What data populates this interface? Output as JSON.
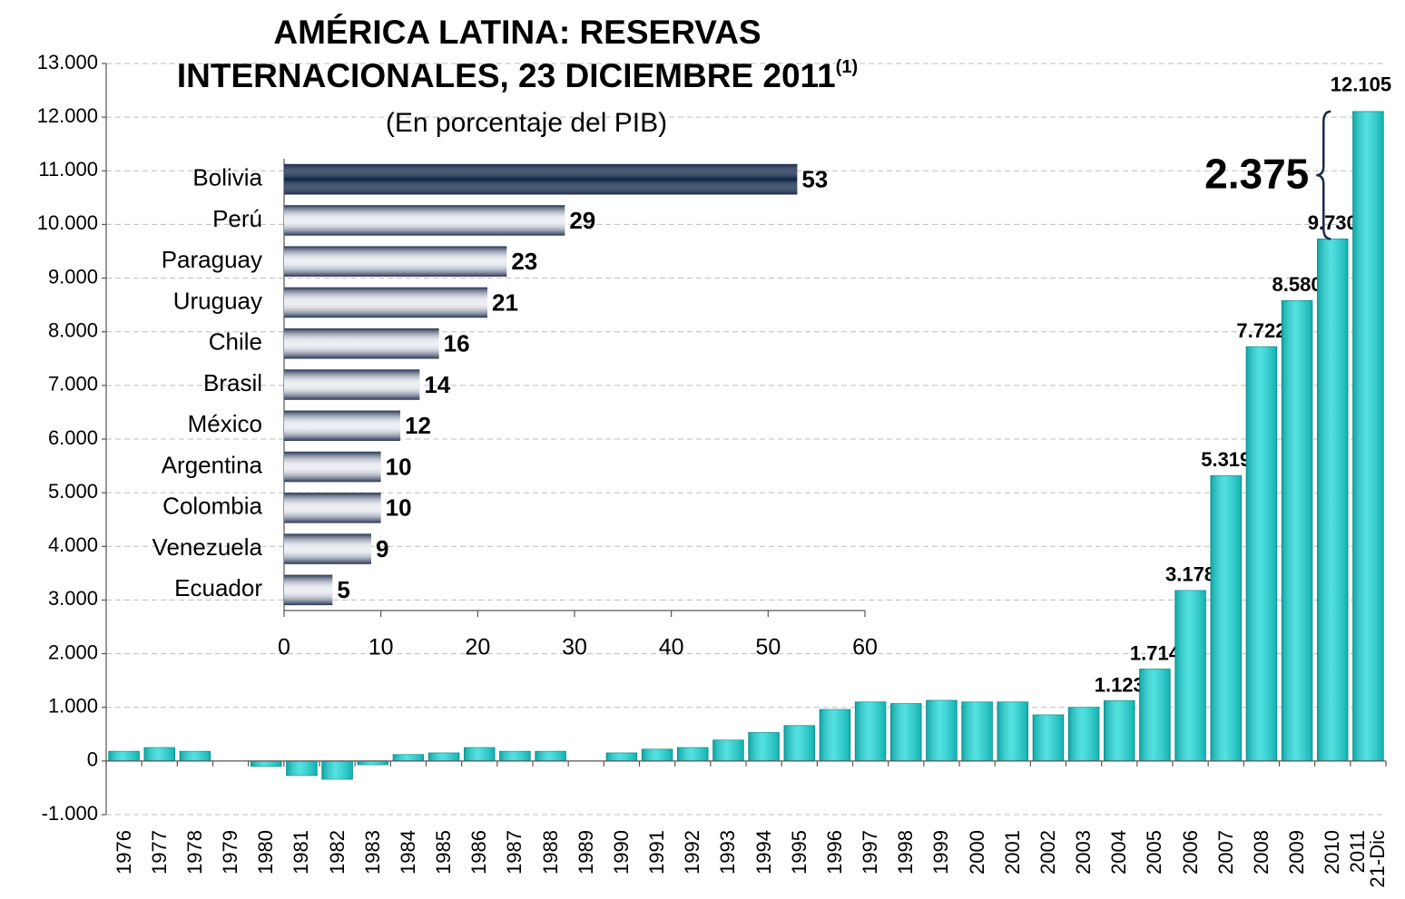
{
  "chart_data": [
    {
      "type": "bar",
      "title": "AMÉRICA LATINA: RESERVAS INTERNACIONALES, 23 DICIEMBRE 2011",
      "title_note": "(1)",
      "subtitle": "(En porcentaje del PIB)",
      "categories": [
        "1976",
        "1977",
        "1978",
        "1979",
        "1980",
        "1981",
        "1982",
        "1983",
        "1984",
        "1985",
        "1986",
        "1987",
        "1988",
        "1989",
        "1990",
        "1991",
        "1992",
        "1993",
        "1994",
        "1995",
        "1996",
        "1997",
        "1998",
        "1999",
        "2000",
        "2001",
        "2002",
        "2003",
        "2004",
        "2005",
        "2006",
        "2007",
        "2008",
        "2009",
        "2010",
        "2011\n21-Dic"
      ],
      "values": [
        180,
        250,
        180,
        0,
        -100,
        -270,
        -340,
        -70,
        120,
        150,
        250,
        180,
        180,
        0,
        150,
        220,
        250,
        390,
        530,
        660,
        960,
        1100,
        1070,
        1130,
        1100,
        1100,
        860,
        1000,
        1123,
        1714,
        3178,
        5319,
        7722,
        8580,
        9730,
        12105
      ],
      "value_labels": [
        null,
        null,
        null,
        null,
        null,
        null,
        null,
        null,
        null,
        null,
        null,
        null,
        null,
        null,
        null,
        null,
        null,
        null,
        null,
        null,
        null,
        null,
        null,
        null,
        null,
        null,
        null,
        null,
        "1.123",
        "1.714",
        "3.178",
        "5.319",
        "7.722",
        "8.580",
        "9.730",
        "12.105"
      ],
      "color": "#1ad6d6",
      "ylim": [
        -1000,
        13000
      ],
      "yticks": [
        {
          "value": -1000,
          "label": "-1.000"
        },
        0,
        {
          "value": 1000,
          "label": "1.000"
        },
        {
          "value": 2000,
          "label": "2.000"
        },
        {
          "value": 3000,
          "label": "3.000"
        },
        {
          "value": 4000,
          "label": "4.000"
        },
        {
          "value": 5000,
          "label": "5.000"
        },
        {
          "value": 6000,
          "label": "6.000"
        },
        {
          "value": 7000,
          "label": "7.000"
        },
        {
          "value": 8000,
          "label": "8.000"
        },
        {
          "value": 9000,
          "label": "9.000"
        },
        {
          "value": 10000,
          "label": "10.000"
        },
        {
          "value": 11000,
          "label": "11.000"
        },
        {
          "value": 12000,
          "label": "12.000"
        },
        {
          "value": 13000,
          "label": "13.000"
        }
      ],
      "grid": true,
      "annotation": {
        "value": 2375,
        "label": "2.375"
      }
    },
    {
      "type": "hbar",
      "categories": [
        "Bolivia",
        "Perú",
        "Paraguay",
        "Uruguay",
        "Chile",
        "Brasil",
        "México",
        "Argentina",
        "Colombia",
        "Venezuela",
        "Ecuador"
      ],
      "values": [
        53,
        29,
        23,
        21,
        16,
        14,
        12,
        10,
        10,
        9,
        5
      ],
      "colors": [
        "#0b2545",
        "#eceef4",
        "#eceef4",
        "#eceef4",
        "#eceef4",
        "#eceef4",
        "#eceef4",
        "#eceef4",
        "#eceef4",
        "#eceef4",
        "#eceef4"
      ],
      "xlim": [
        0,
        60
      ],
      "xticks": [
        0,
        10,
        20,
        30,
        40,
        50,
        60
      ]
    }
  ]
}
